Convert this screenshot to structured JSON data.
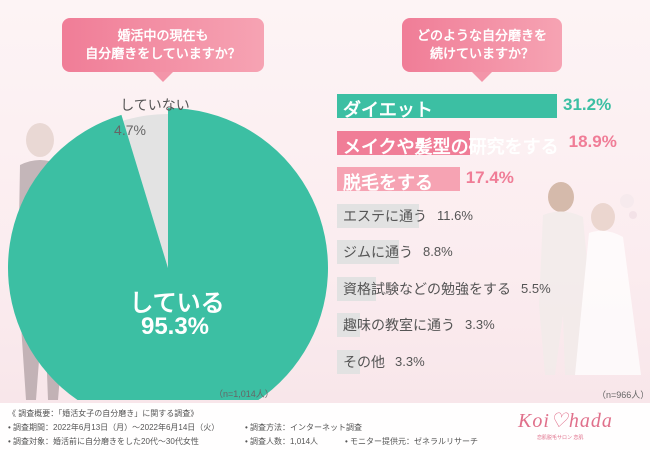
{
  "questions": {
    "left": "婚活中の現在も\n自分磨きをしていますか？",
    "right": "どのような自分磨きを\n続けていますか？"
  },
  "chart_data": [
    {
      "type": "pie",
      "title": "婚活中の現在も自分磨きをしていますか？",
      "slices": [
        {
          "label": "している",
          "value": 95.3,
          "display": "95.3%",
          "color": "#3cbfa3"
        },
        {
          "label": "していない",
          "value": 4.7,
          "display": "4.7%",
          "color": "#e3e3e3"
        }
      ],
      "note": "（n=1,014人）"
    },
    {
      "type": "bar",
      "title": "どのような自分磨きを続けていますか？",
      "categories": [
        "ダイエット",
        "メイクや髪型の研究をする",
        "脱毛をする",
        "エステに通う",
        "ジムに通う",
        "資格試験などの勉強をする",
        "趣味の教室に通う",
        "その他"
      ],
      "values": [
        31.2,
        18.9,
        17.4,
        11.6,
        8.8,
        5.5,
        3.3,
        3.3
      ],
      "display": [
        "31.2%",
        "18.9%",
        "17.4%",
        "11.6%",
        "8.8%",
        "5.5%",
        "3.3%",
        "3.3%"
      ],
      "colors": [
        "#3cbfa3",
        "#f07d97",
        "#f6a3b3",
        "#e2e2e2",
        "#e2e2e2",
        "#e2e2e2",
        "#e2e2e2",
        "#e2e2e2"
      ],
      "note": "（n=966人）"
    }
  ],
  "footer": {
    "title": "《 調査概要：「婚活女子の自分磨き」に関する調査》",
    "period": "• 調査期間：2022年6月13日（月）～2022年6月14日（火）",
    "method": "• 調査方法：インターネット調査",
    "target": "• 調査対象：婚活前に自分磨きをした20代～30代女性",
    "count": "• 調査人数：1,014人",
    "provider": "• モニター提供元：ゼネラルリサーチ"
  },
  "logo": {
    "text": "Koi♡hada",
    "sub": "恋肌脱毛サロン 恋肌"
  }
}
